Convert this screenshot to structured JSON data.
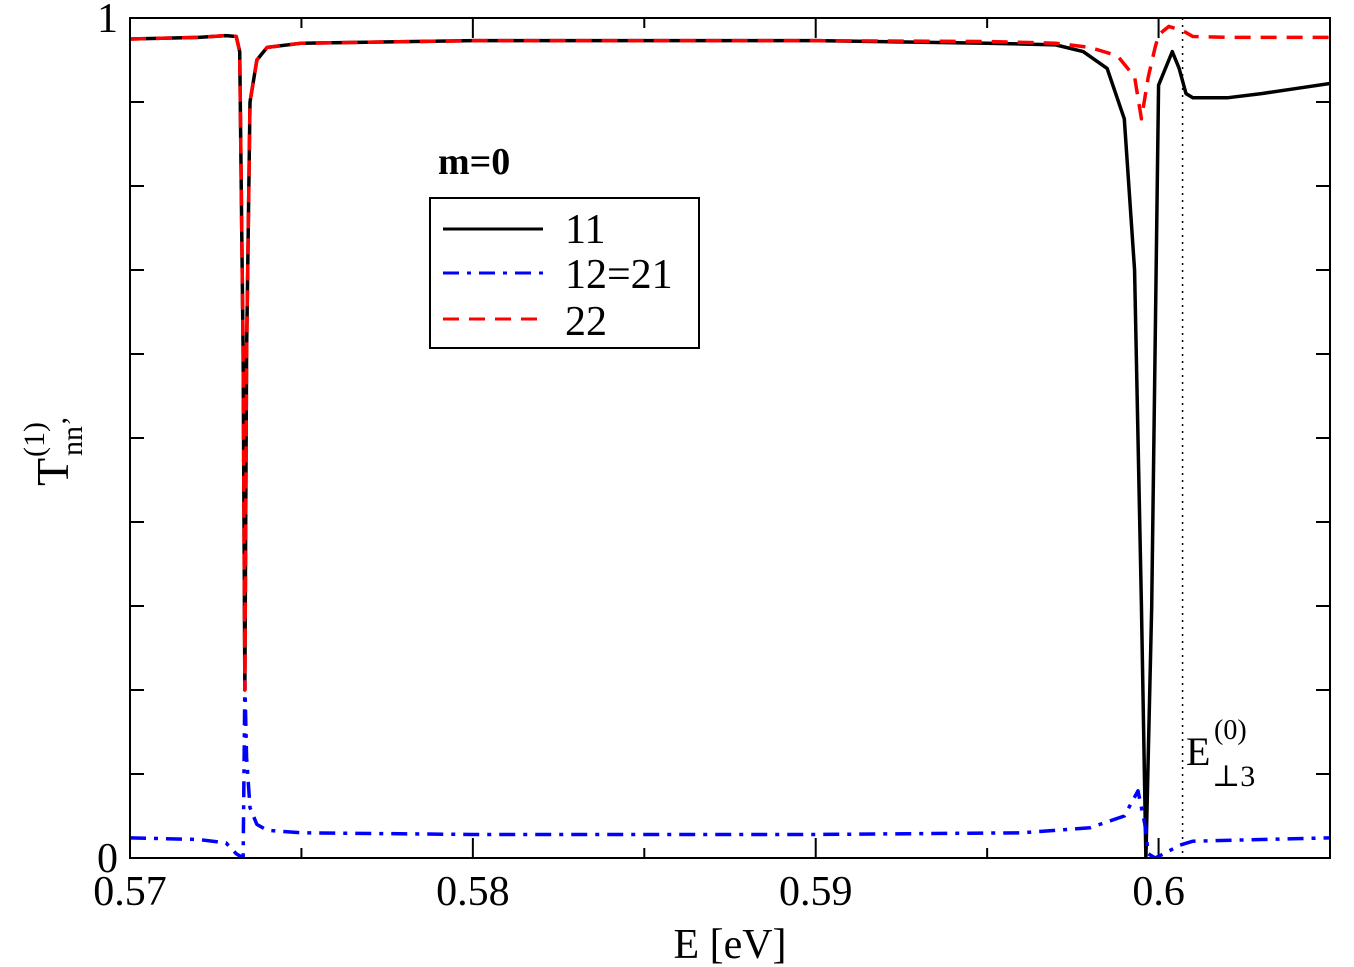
{
  "chart_data": {
    "type": "line",
    "xlabel": "E [eV]",
    "ylabel": {
      "base": "T",
      "sup": "(1)",
      "sub": "nn’"
    },
    "xlim": [
      0.57,
      0.605
    ],
    "ylim": [
      0,
      1
    ],
    "x_ticks": [
      {
        "value": 0.57,
        "label": "0.57"
      },
      {
        "value": 0.58,
        "label": "0.58"
      },
      {
        "value": 0.59,
        "label": "0.59"
      },
      {
        "value": 0.6,
        "label": "0.6"
      }
    ],
    "x_minor_step": 0.005,
    "y_ticks": [
      {
        "value": 0,
        "label": "0"
      },
      {
        "value": 1,
        "label": "1"
      }
    ],
    "y_minor_step": 0.1,
    "grid": false,
    "legend": {
      "title": "m=0",
      "position": "upper-left-center",
      "entries": [
        "11",
        "12=21",
        "22"
      ]
    },
    "annotation": {
      "base": "E",
      "sup": "(0)",
      "sub": "⊥3",
      "x": 0.6007
    },
    "series": [
      {
        "name": "11",
        "color": "#000000",
        "dash": "solid",
        "points": [
          [
            0.57,
            0.975
          ],
          [
            0.572,
            0.977
          ],
          [
            0.5728,
            0.979
          ],
          [
            0.5731,
            0.978
          ],
          [
            0.5732,
            0.96
          ],
          [
            0.5733,
            0.6
          ],
          [
            0.57335,
            0.2
          ],
          [
            0.5734,
            0.6
          ],
          [
            0.5735,
            0.9
          ],
          [
            0.5737,
            0.95
          ],
          [
            0.574,
            0.965
          ],
          [
            0.575,
            0.97
          ],
          [
            0.58,
            0.973
          ],
          [
            0.585,
            0.973
          ],
          [
            0.59,
            0.973
          ],
          [
            0.595,
            0.97
          ],
          [
            0.597,
            0.968
          ],
          [
            0.5978,
            0.96
          ],
          [
            0.5985,
            0.94
          ],
          [
            0.599,
            0.88
          ],
          [
            0.5993,
            0.7
          ],
          [
            0.5995,
            0.3
          ],
          [
            0.59963,
            0.0
          ],
          [
            0.5998,
            0.3
          ],
          [
            0.6,
            0.92
          ],
          [
            0.6004,
            0.96
          ],
          [
            0.6006,
            0.94
          ],
          [
            0.6008,
            0.91
          ],
          [
            0.601,
            0.905
          ],
          [
            0.602,
            0.905
          ],
          [
            0.603,
            0.91
          ],
          [
            0.604,
            0.916
          ],
          [
            0.605,
            0.922
          ]
        ]
      },
      {
        "name": "12=21",
        "color": "#0000ff",
        "dash": "dashdot",
        "points": [
          [
            0.57,
            0.024
          ],
          [
            0.572,
            0.022
          ],
          [
            0.5728,
            0.018
          ],
          [
            0.5731,
            0.005
          ],
          [
            0.5733,
            0.0
          ],
          [
            0.57335,
            0.21
          ],
          [
            0.5734,
            0.12
          ],
          [
            0.5735,
            0.06
          ],
          [
            0.5737,
            0.04
          ],
          [
            0.574,
            0.033
          ],
          [
            0.575,
            0.03
          ],
          [
            0.58,
            0.028
          ],
          [
            0.59,
            0.028
          ],
          [
            0.596,
            0.03
          ],
          [
            0.598,
            0.036
          ],
          [
            0.599,
            0.05
          ],
          [
            0.5994,
            0.08
          ],
          [
            0.5996,
            0.04
          ],
          [
            0.5997,
            0.005
          ],
          [
            0.5999,
            0.0
          ],
          [
            0.6002,
            0.006
          ],
          [
            0.6006,
            0.015
          ],
          [
            0.601,
            0.02
          ],
          [
            0.603,
            0.022
          ],
          [
            0.605,
            0.024
          ]
        ]
      },
      {
        "name": "22",
        "color": "#ff0000",
        "dash": "dashed",
        "points": [
          [
            0.57,
            0.975
          ],
          [
            0.572,
            0.977
          ],
          [
            0.5728,
            0.979
          ],
          [
            0.5731,
            0.978
          ],
          [
            0.5732,
            0.96
          ],
          [
            0.5733,
            0.6
          ],
          [
            0.57335,
            0.2
          ],
          [
            0.5734,
            0.6
          ],
          [
            0.5735,
            0.9
          ],
          [
            0.5737,
            0.95
          ],
          [
            0.574,
            0.965
          ],
          [
            0.575,
            0.97
          ],
          [
            0.58,
            0.973
          ],
          [
            0.59,
            0.973
          ],
          [
            0.595,
            0.972
          ],
          [
            0.597,
            0.97
          ],
          [
            0.598,
            0.965
          ],
          [
            0.5988,
            0.955
          ],
          [
            0.5993,
            0.93
          ],
          [
            0.5995,
            0.88
          ],
          [
            0.5997,
            0.93
          ],
          [
            0.5999,
            0.965
          ],
          [
            0.6,
            0.98
          ],
          [
            0.6003,
            0.99
          ],
          [
            0.6007,
            0.985
          ],
          [
            0.601,
            0.978
          ],
          [
            0.602,
            0.977
          ],
          [
            0.605,
            0.977
          ]
        ]
      }
    ]
  }
}
